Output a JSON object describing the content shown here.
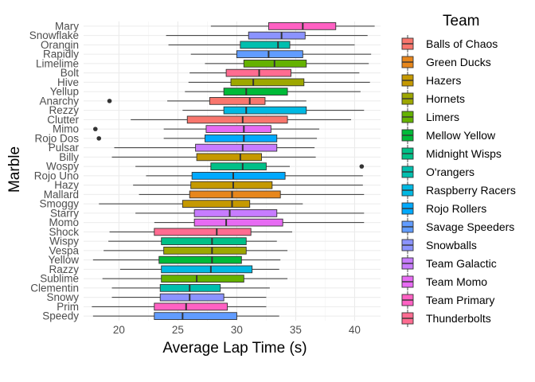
{
  "chart_data": {
    "type": "boxplot",
    "orientation": "horizontal",
    "xlabel": "Average Lap Time (s)",
    "ylabel": "Marble",
    "xlim": [
      17.0,
      42.2
    ],
    "x_ticks": [
      20,
      25,
      30,
      35,
      40
    ],
    "x_tick_labels": [
      "20",
      "25",
      "30",
      "35",
      "40"
    ],
    "grid": true,
    "legend": {
      "title": "Team",
      "position": "right",
      "entries": [
        {
          "name": "Balls of Chaos",
          "color": "#F8766D"
        },
        {
          "name": "Green Ducks",
          "color": "#E7861B"
        },
        {
          "name": "Hazers",
          "color": "#C59900"
        },
        {
          "name": "Hornets",
          "color": "#9DA700"
        },
        {
          "name": "Limers",
          "color": "#64B200"
        },
        {
          "name": "Mellow Yellow",
          "color": "#00BA38"
        },
        {
          "name": "Midnight Wisps",
          "color": "#00C087"
        },
        {
          "name": "O'rangers",
          "color": "#00BFAE"
        },
        {
          "name": "Raspberry Racers",
          "color": "#00B9E3"
        },
        {
          "name": "Rojo Rollers",
          "color": "#00A9FF"
        },
        {
          "name": "Savage Speeders",
          "color": "#619CFF"
        },
        {
          "name": "Snowballs",
          "color": "#8B93FF"
        },
        {
          "name": "Team Galactic",
          "color": "#C77CFF"
        },
        {
          "name": "Team Momo",
          "color": "#E76BF3"
        },
        {
          "name": "Team Primary",
          "color": "#FF61C3"
        },
        {
          "name": "Thunderbolts",
          "color": "#FF6C91"
        }
      ]
    },
    "marbles": [
      {
        "name": "Mary",
        "team": "Team Primary",
        "min": 27.8,
        "q1": 32.7,
        "median": 35.6,
        "q3": 38.4,
        "max": 41.7,
        "outliers": []
      },
      {
        "name": "Snowflake",
        "team": "Snowballs",
        "min": 24.0,
        "q1": 31.0,
        "median": 33.8,
        "q3": 35.8,
        "max": 41.1,
        "outliers": []
      },
      {
        "name": "Orangin",
        "team": "O'rangers",
        "min": 24.2,
        "q1": 30.3,
        "median": 33.5,
        "q3": 34.5,
        "max": 40.0,
        "outliers": []
      },
      {
        "name": "Rapidly",
        "team": "Savage Speeders",
        "min": 26.1,
        "q1": 30.0,
        "median": 32.7,
        "q3": 35.6,
        "max": 41.4,
        "outliers": []
      },
      {
        "name": "Limelime",
        "team": "Limers",
        "min": 27.3,
        "q1": 30.6,
        "median": 33.2,
        "q3": 35.9,
        "max": 41.2,
        "outliers": []
      },
      {
        "name": "Bolt",
        "team": "Thunderbolts",
        "min": 26.0,
        "q1": 29.1,
        "median": 31.9,
        "q3": 34.6,
        "max": 40.4,
        "outliers": []
      },
      {
        "name": "Hive",
        "team": "Hornets",
        "min": 25.9,
        "q1": 29.5,
        "median": 31.4,
        "q3": 35.7,
        "max": 41.3,
        "outliers": []
      },
      {
        "name": "Yellup",
        "team": "Mellow Yellow",
        "min": 25.6,
        "q1": 28.9,
        "median": 30.8,
        "q3": 34.3,
        "max": 40.5,
        "outliers": []
      },
      {
        "name": "Anarchy",
        "team": "Balls of Chaos",
        "min": 24.1,
        "q1": 27.7,
        "median": 31.1,
        "q3": 32.4,
        "max": 35.9,
        "outliers": [
          19.2
        ]
      },
      {
        "name": "Rezzy",
        "team": "Raspberry Racers",
        "min": 25.4,
        "q1": 28.9,
        "median": 30.8,
        "q3": 35.9,
        "max": 40.8,
        "outliers": []
      },
      {
        "name": "Clutter",
        "team": "Balls of Chaos",
        "min": 21.0,
        "q1": 25.8,
        "median": 30.5,
        "q3": 34.3,
        "max": 39.7,
        "outliers": []
      },
      {
        "name": "Mimo",
        "team": "Team Momo",
        "min": 23.8,
        "q1": 27.4,
        "median": 30.6,
        "q3": 32.9,
        "max": 37.0,
        "outliers": [
          18.0
        ]
      },
      {
        "name": "Rojo Dos",
        "team": "Rojo Rollers",
        "min": 23.8,
        "q1": 27.3,
        "median": 30.6,
        "q3": 33.4,
        "max": 36.8,
        "outliers": [
          18.3
        ]
      },
      {
        "name": "Pulsar",
        "team": "Team Galactic",
        "min": 19.6,
        "q1": 26.5,
        "median": 30.5,
        "q3": 33.4,
        "max": 36.6,
        "outliers": []
      },
      {
        "name": "Billy",
        "team": "Hazers",
        "min": 19.4,
        "q1": 26.6,
        "median": 30.3,
        "q3": 32.1,
        "max": 36.7,
        "outliers": []
      },
      {
        "name": "Wospy",
        "team": "Midnight Wisps",
        "min": 21.4,
        "q1": 27.8,
        "median": 30.5,
        "q3": 32.5,
        "max": 34.5,
        "outliers": [
          40.6
        ]
      },
      {
        "name": "Rojo Uno",
        "team": "Rojo Rollers",
        "min": 22.3,
        "q1": 26.2,
        "median": 29.7,
        "q3": 34.1,
        "max": 40.7,
        "outliers": []
      },
      {
        "name": "Hazy",
        "team": "Hazers",
        "min": 21.2,
        "q1": 26.1,
        "median": 29.7,
        "q3": 33.0,
        "max": 40.7,
        "outliers": []
      },
      {
        "name": "Mallard",
        "team": "Green Ducks",
        "min": 21.7,
        "q1": 26.0,
        "median": 29.6,
        "q3": 33.7,
        "max": 40.8,
        "outliers": []
      },
      {
        "name": "Smoggy",
        "team": "Hazers",
        "min": 18.3,
        "q1": 25.4,
        "median": 29.6,
        "q3": 31.1,
        "max": 35.6,
        "outliers": []
      },
      {
        "name": "Starry",
        "team": "Team Galactic",
        "min": 21.4,
        "q1": 26.4,
        "median": 29.4,
        "q3": 33.4,
        "max": 40.8,
        "outliers": []
      },
      {
        "name": "Momo",
        "team": "Team Momo",
        "min": 23.0,
        "q1": 26.4,
        "median": 29.1,
        "q3": 33.9,
        "max": 40.8,
        "outliers": []
      },
      {
        "name": "Shock",
        "team": "Thunderbolts",
        "min": 19.2,
        "q1": 23.0,
        "median": 28.3,
        "q3": 31.2,
        "max": 34.7,
        "outliers": []
      },
      {
        "name": "Wispy",
        "team": "Midnight Wisps",
        "min": 19.1,
        "q1": 23.6,
        "median": 27.9,
        "q3": 30.8,
        "max": 33.4,
        "outliers": []
      },
      {
        "name": "Vespa",
        "team": "Hornets",
        "min": 18.7,
        "q1": 23.8,
        "median": 27.9,
        "q3": 30.8,
        "max": 34.3,
        "outliers": []
      },
      {
        "name": "Yellow",
        "team": "Mellow Yellow",
        "min": 17.8,
        "q1": 23.4,
        "median": 27.9,
        "q3": 30.4,
        "max": 33.7,
        "outliers": []
      },
      {
        "name": "Razzy",
        "team": "Raspberry Racers",
        "min": 20.1,
        "q1": 23.6,
        "median": 27.8,
        "q3": 31.3,
        "max": 33.6,
        "outliers": []
      },
      {
        "name": "Sublime",
        "team": "Limers",
        "min": 18.6,
        "q1": 23.6,
        "median": 26.6,
        "q3": 30.6,
        "max": 34.3,
        "outliers": []
      },
      {
        "name": "Clementin",
        "team": "O'rangers",
        "min": 19.4,
        "q1": 23.5,
        "median": 26.0,
        "q3": 28.6,
        "max": 32.8,
        "outliers": []
      },
      {
        "name": "Snowy",
        "team": "Snowballs",
        "min": 19.4,
        "q1": 23.5,
        "median": 26.0,
        "q3": 28.9,
        "max": 32.5,
        "outliers": []
      },
      {
        "name": "Prim",
        "team": "Team Primary",
        "min": 17.7,
        "q1": 23.0,
        "median": 25.7,
        "q3": 29.2,
        "max": 32.5,
        "outliers": []
      },
      {
        "name": "Speedy",
        "team": "Savage Speeders",
        "min": 17.8,
        "q1": 23.0,
        "median": 25.4,
        "q3": 30.0,
        "max": 33.6,
        "outliers": []
      }
    ]
  }
}
